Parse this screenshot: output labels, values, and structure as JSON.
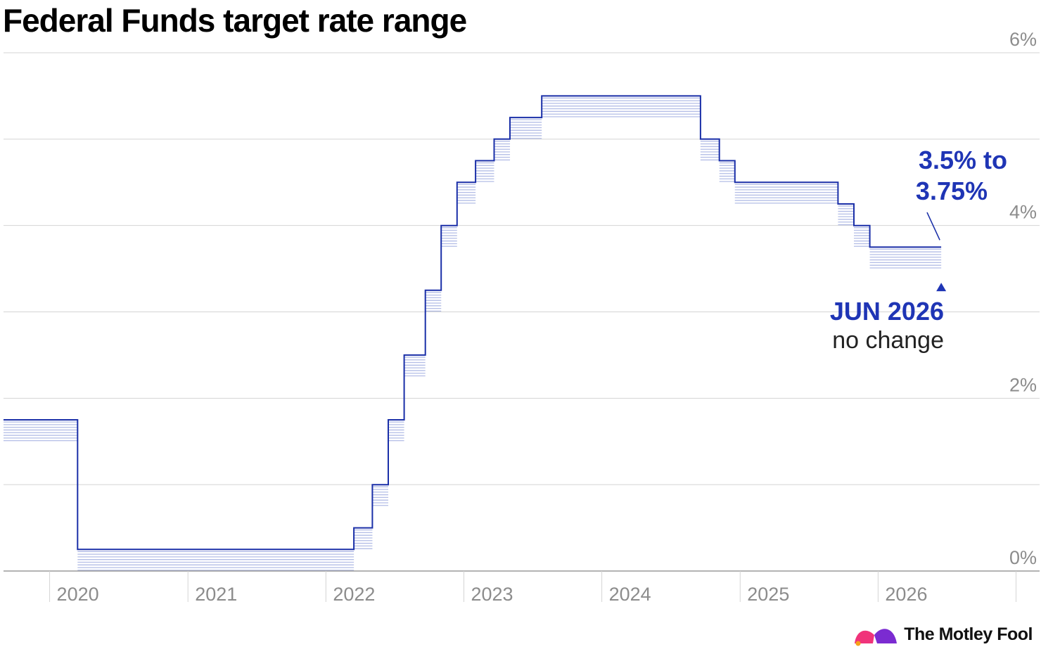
{
  "chart_data": {
    "type": "line",
    "title": "Federal Funds target rate range",
    "ylim": [
      0,
      6
    ],
    "yticks": [
      "6%",
      "4%",
      "2%",
      "0%"
    ],
    "xlim": [
      "2019-09-01",
      "2026-12-31"
    ],
    "xticks": [
      "2020",
      "2021",
      "2022",
      "2023",
      "2024",
      "2025",
      "2026"
    ],
    "grid": true,
    "series": [
      {
        "steps": [
          {
            "date": "2019-09-01",
            "lower": 1.5,
            "upper": 1.75
          },
          {
            "date": "2020-03-15",
            "lower": 0,
            "upper": 0.25
          },
          {
            "date": "2022-03-16",
            "lower": 0.25,
            "upper": 0.5
          },
          {
            "date": "2022-05-04",
            "lower": 0.75,
            "upper": 1.0
          },
          {
            "date": "2022-06-15",
            "lower": 1.5,
            "upper": 1.75
          },
          {
            "date": "2022-07-27",
            "lower": 2.25,
            "upper": 2.5
          },
          {
            "date": "2022-09-21",
            "lower": 3.0,
            "upper": 3.25
          },
          {
            "date": "2022-11-02",
            "lower": 3.75,
            "upper": 4.0
          },
          {
            "date": "2022-12-14",
            "lower": 4.25,
            "upper": 4.5
          },
          {
            "date": "2023-02-01",
            "lower": 4.5,
            "upper": 4.75
          },
          {
            "date": "2023-03-22",
            "lower": 4.75,
            "upper": 5.0
          },
          {
            "date": "2023-05-03",
            "lower": 5.0,
            "upper": 5.25
          },
          {
            "date": "2023-07-26",
            "lower": 5.25,
            "upper": 5.5
          },
          {
            "date": "2024-09-18",
            "lower": 4.75,
            "upper": 5.0
          },
          {
            "date": "2024-11-07",
            "lower": 4.5,
            "upper": 4.75
          },
          {
            "date": "2024-12-18",
            "lower": 4.25,
            "upper": 4.5
          },
          {
            "date": "2025-09-17",
            "lower": 4.0,
            "upper": 4.25
          },
          {
            "date": "2025-10-29",
            "lower": 3.75,
            "upper": 4.0
          },
          {
            "date": "2025-12-10",
            "lower": 3.5,
            "upper": 3.75
          }
        ],
        "end_date": "2026-06-17"
      }
    ],
    "annotation": {
      "value_text_line1": "3.5% to",
      "value_text_line2": "3.75%",
      "date_text": "JUN 2026",
      "note_text": "no change",
      "date": "2026-06-17"
    }
  },
  "colors": {
    "line": "#1a2fa8",
    "band": "#b3bde6",
    "annotation": "#1f35b5",
    "grid": "#d4d4d4",
    "axis": "#9a9a9a",
    "logo_pink": "#f0337a",
    "logo_purple": "#7b2bd1",
    "logo_orange": "#f6a21a"
  },
  "brand": {
    "name": "The Motley Fool",
    "icon": "motley-fool-jester-hat-icon"
  }
}
